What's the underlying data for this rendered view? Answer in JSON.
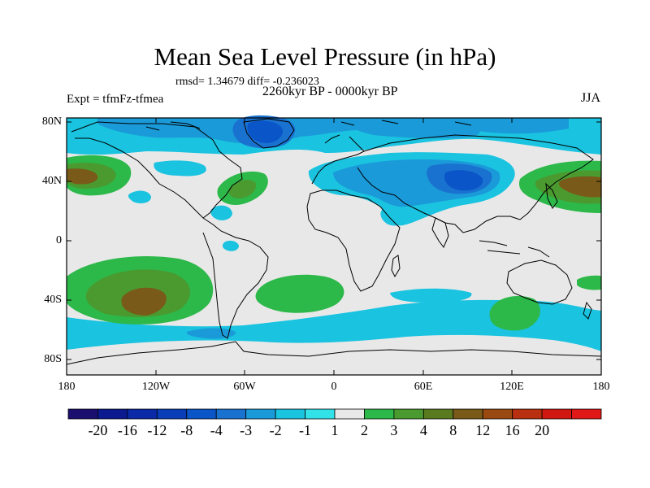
{
  "title": "Mean Sea Level Pressure (in hPa)",
  "stats_text": "rmsd= 1.34679 diff= -0.236023",
  "experiment_text": "Expt = tfmFz-tfmea",
  "period_text": "2260kyr BP - 0000kyr BP",
  "season": "JJA",
  "lat_labels": [
    "80N",
    "40N",
    "0",
    "40S",
    "80S"
  ],
  "lon_labels": [
    "180",
    "120W",
    "60W",
    "0",
    "60E",
    "120E",
    "180"
  ],
  "colorbar": {
    "labels": [
      "-20",
      "-16",
      "-12",
      "-8",
      "-4",
      "-3",
      "-2",
      "-1",
      "1",
      "2",
      "3",
      "4",
      "8",
      "12",
      "16",
      "20"
    ],
    "colors": [
      "#1a0f6e",
      "#0b1a8f",
      "#0a2aa8",
      "#0a3db8",
      "#0a55c8",
      "#1a72d0",
      "#1a9ad8",
      "#1ac3e0",
      "#33e1e8",
      "#e8e8e8",
      "#2db84a",
      "#4a9a30",
      "#5a7a20",
      "#7a5a18",
      "#9a4a10",
      "#b83010",
      "#d01810",
      "#e01818"
    ]
  }
}
